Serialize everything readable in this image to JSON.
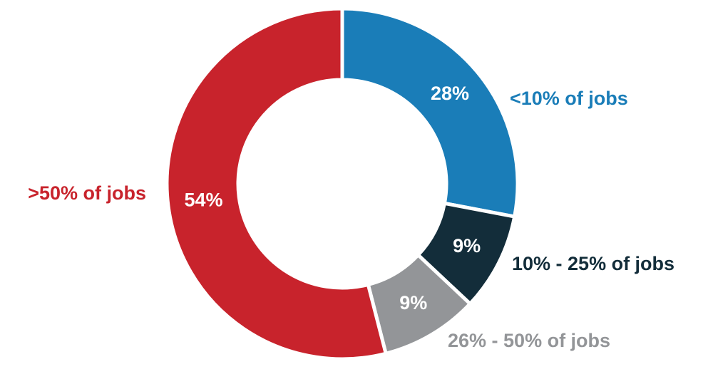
{
  "chart_data": {
    "type": "donut",
    "categories": [
      "<10% of jobs",
      "10% - 25% of jobs",
      "26% - 50% of jobs",
      ">50% of jobs"
    ],
    "values": [
      28,
      9,
      9,
      54
    ],
    "value_labels": [
      "28%",
      "9%",
      "9%",
      "54%"
    ],
    "colors": [
      "#1a7db8",
      "#132d3a",
      "#939598",
      "#c8232c"
    ]
  }
}
